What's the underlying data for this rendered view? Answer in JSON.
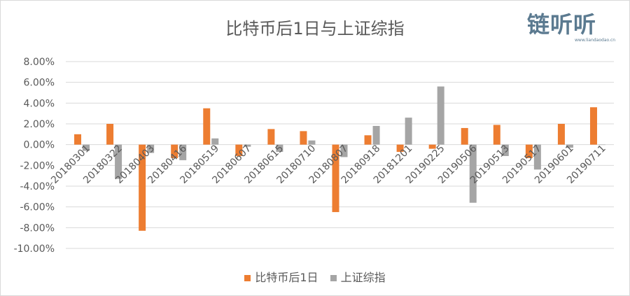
{
  "title": "比特币后1日与上证综指",
  "logo": {
    "text": "链听听",
    "url": "www.liandaodao.cn"
  },
  "colors": {
    "series1": "#ed7d31",
    "series2": "#a5a5a5",
    "grid": "#d9d9d9",
    "text": "#595959"
  },
  "legend": {
    "series1": "比特币后1日",
    "series2": "上证综指"
  },
  "chart_data": {
    "type": "bar",
    "categories": [
      "20180301",
      "20180322",
      "20180403",
      "20180416",
      "20180519",
      "20180607",
      "20180615",
      "20180710",
      "20180807",
      "20180918",
      "20181201",
      "20190225",
      "20190506",
      "20190513",
      "20190517",
      "20190601",
      "20190711"
    ],
    "series": [
      {
        "name": "比特币后1日",
        "values": [
          1.0,
          2.0,
          -8.3,
          -1.3,
          3.5,
          -1.1,
          1.5,
          1.3,
          -6.5,
          0.9,
          -0.7,
          -0.4,
          1.6,
          1.9,
          -1.3,
          2.0,
          3.6
        ]
      },
      {
        "name": "上证综指",
        "values": [
          -0.6,
          -3.3,
          -0.8,
          -1.5,
          0.6,
          -0.2,
          -0.7,
          0.4,
          -1.2,
          1.8,
          2.6,
          5.6,
          -5.6,
          -1.1,
          -2.4,
          -0.3,
          0.0
        ]
      }
    ],
    "y_ticks": [
      "8.00%",
      "6.00%",
      "4.00%",
      "2.00%",
      "0.00%",
      "-2.00%",
      "-4.00%",
      "-6.00%",
      "-8.00%",
      "-10.00%"
    ],
    "y_unit": "%",
    "ylim": [
      -10,
      8
    ],
    "grid": true,
    "legend_position": "bottom"
  }
}
